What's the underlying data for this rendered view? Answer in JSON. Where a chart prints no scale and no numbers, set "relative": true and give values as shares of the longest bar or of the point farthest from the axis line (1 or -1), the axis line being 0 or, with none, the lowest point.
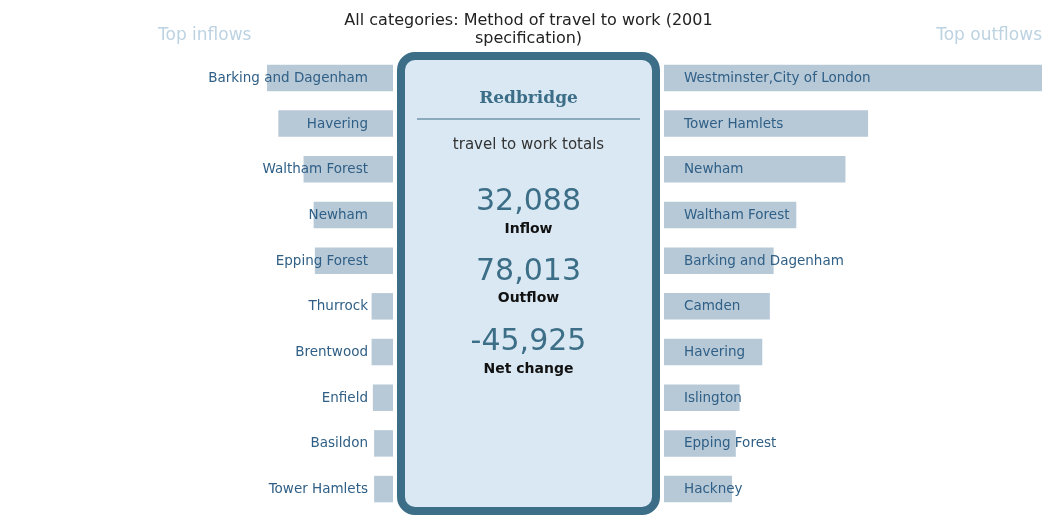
{
  "chart_data": [
    {
      "type": "bar",
      "orientation": "horizontal",
      "relative": true,
      "title": "Top inflows",
      "categories": [
        "Barking and Dagenham",
        "Havering",
        "Waltham Forest",
        "Newham",
        "Epping Forest",
        "Thurrock",
        "Brentwood",
        "Enfield",
        "Basildon",
        "Tower Hamlets"
      ],
      "values": [
        1,
        0.91,
        0.71,
        0.63,
        0.62,
        0.17,
        0.17,
        0.16,
        0.15,
        0.15
      ],
      "color": "#b7c9d7"
    },
    {
      "type": "other",
      "title": "All categories: Method of travel to work (2001 specification)",
      "annotations": [
        "Redbridge",
        "travel to work totals",
        "32,088",
        "Inflow",
        "78,013",
        "Outflow",
        "-45,925",
        "Net change"
      ]
    },
    {
      "type": "bar",
      "orientation": "horizontal",
      "relative": true,
      "title": "Top outflows",
      "categories": [
        "Westminster,City of London",
        "Tower Hamlets",
        "Newham",
        "Waltham Forest",
        "Barking and Dagenham",
        "Camden",
        "Havering",
        "Islington",
        "Epping Forest",
        "Hackney"
      ],
      "values": [
        1,
        0.54,
        0.48,
        0.35,
        0.29,
        0.28,
        0.26,
        0.2,
        0.19,
        0.18
      ],
      "color": "#b7c9d7"
    }
  ]
}
